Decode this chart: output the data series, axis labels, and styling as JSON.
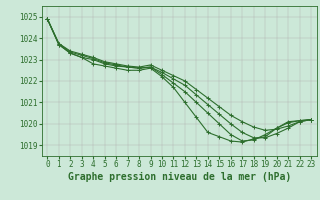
{
  "title": "Graphe pression niveau de la mer (hPa)",
  "x_labels": [
    "0",
    "1",
    "2",
    "3",
    "4",
    "5",
    "6",
    "7",
    "8",
    "9",
    "10",
    "11",
    "12",
    "13",
    "14",
    "15",
    "16",
    "17",
    "18",
    "19",
    "20",
    "21",
    "22",
    "23"
  ],
  "xlim": [
    -0.5,
    23.5
  ],
  "ylim": [
    1018.5,
    1025.5
  ],
  "yticks": [
    1019,
    1020,
    1021,
    1022,
    1023,
    1024,
    1025
  ],
  "background_color": "#cce8d8",
  "grid_color": "#b0b0b0",
  "line_color": "#2d6e2d",
  "lines": [
    [
      1024.9,
      1023.7,
      1023.3,
      1023.1,
      1022.8,
      1022.7,
      1022.6,
      1022.5,
      1022.5,
      1022.6,
      1022.2,
      1021.7,
      1021.0,
      1020.3,
      1019.6,
      1019.4,
      1019.2,
      1019.15,
      1019.3,
      1019.4,
      1019.8,
      1020.1,
      1020.15,
      1020.2
    ],
    [
      1024.9,
      1023.7,
      1023.3,
      1023.1,
      1023.0,
      1022.8,
      1022.7,
      1022.65,
      1022.6,
      1022.65,
      1022.3,
      1021.9,
      1021.5,
      1021.0,
      1020.5,
      1020.0,
      1019.5,
      1019.2,
      1019.25,
      1019.5,
      1019.8,
      1020.05,
      1020.15,
      1020.2
    ],
    [
      1024.9,
      1023.75,
      1023.35,
      1023.2,
      1023.05,
      1022.85,
      1022.75,
      1022.65,
      1022.6,
      1022.65,
      1022.4,
      1022.1,
      1021.8,
      1021.35,
      1020.9,
      1020.45,
      1020.0,
      1019.6,
      1019.35,
      1019.35,
      1019.55,
      1019.8,
      1020.1,
      1020.2
    ],
    [
      1024.9,
      1023.75,
      1023.4,
      1023.25,
      1023.1,
      1022.9,
      1022.8,
      1022.7,
      1022.65,
      1022.75,
      1022.5,
      1022.25,
      1022.0,
      1021.6,
      1021.2,
      1020.8,
      1020.4,
      1020.1,
      1019.85,
      1019.7,
      1019.75,
      1019.9,
      1020.1,
      1020.2
    ]
  ],
  "marker": "+",
  "markersize": 3,
  "linewidth": 0.8,
  "title_fontsize": 7,
  "tick_fontsize": 5.5,
  "ytick_fontsize": 5.5
}
